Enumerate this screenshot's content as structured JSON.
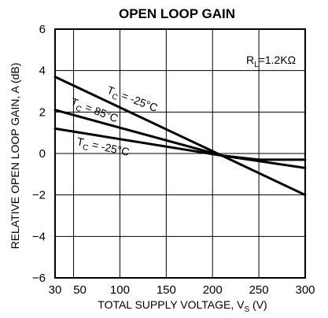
{
  "chart_data": {
    "type": "line",
    "title": "OPEN LOOP GAIN",
    "xlabel": "TOTAL SUPPLY VOLTAGE, V",
    "xlabel_sub": "S",
    "xlabel_unit": " (V)",
    "ylabel": "RELATIVE OPEN LOOP GAIN, A (dB)",
    "xlim": [
      30,
      300
    ],
    "ylim": [
      -6,
      6
    ],
    "xticks": [
      30,
      50,
      100,
      150,
      200,
      250,
      300
    ],
    "xtick_labels": [
      "30",
      "50",
      "100",
      "150",
      "200",
      "250",
      "300"
    ],
    "yticks": [
      -6,
      -4,
      -2,
      0,
      2,
      4,
      6
    ],
    "ytick_labels": [
      "−6",
      "−4",
      "−2",
      "0",
      "2",
      "4",
      "6"
    ],
    "grid": true,
    "annotation": {
      "text": "=1.2KΩ",
      "var": "R",
      "sub": "L"
    },
    "series_labels": [
      {
        "var": "T",
        "sub": "C",
        "text": " = -25°C"
      },
      {
        "var": "T",
        "sub": "C",
        "text": " = 85°C"
      },
      {
        "var": "T",
        "sub": "C",
        "text": " = -25°C"
      }
    ],
    "series": [
      {
        "x": [
          30,
          210,
          300
        ],
        "y": [
          3.7,
          -0.1,
          -2.0
        ]
      },
      {
        "x": [
          30,
          210,
          300
        ],
        "y": [
          2.1,
          -0.1,
          -0.7
        ]
      },
      {
        "x": [
          30,
          210,
          250,
          300
        ],
        "y": [
          1.2,
          -0.1,
          -0.3,
          -0.3
        ]
      }
    ]
  }
}
